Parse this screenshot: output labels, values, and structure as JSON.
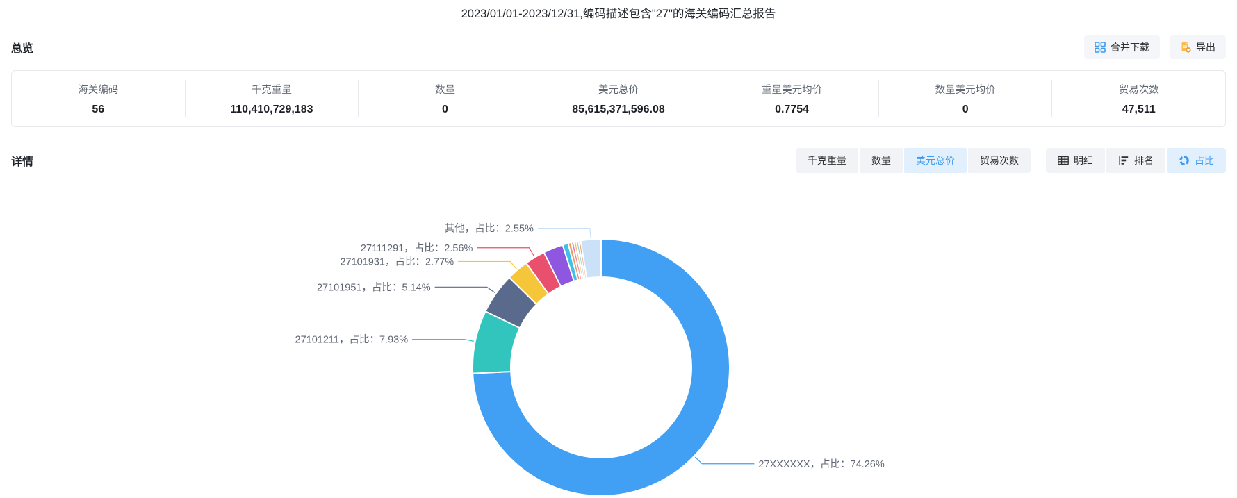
{
  "page": {
    "title": "2023/01/01-2023/12/31,编码描述包含\"27\"的海关编码汇总报告"
  },
  "overview": {
    "heading": "总览",
    "actions": {
      "merge_download": "合并下载",
      "export": "导出"
    },
    "stats": [
      {
        "label": "海关编码",
        "value": "56"
      },
      {
        "label": "千克重量",
        "value": "110,410,729,183"
      },
      {
        "label": "数量",
        "value": "0"
      },
      {
        "label": "美元总价",
        "value": "85,615,371,596.08"
      },
      {
        "label": "重量美元均价",
        "value": "0.7754"
      },
      {
        "label": "数量美元均价",
        "value": "0"
      },
      {
        "label": "贸易次数",
        "value": "47,511"
      }
    ]
  },
  "detail": {
    "heading": "详情",
    "metric_tabs": [
      {
        "label": "千克重量",
        "active": false
      },
      {
        "label": "数量",
        "active": false
      },
      {
        "label": "美元总价",
        "active": true
      },
      {
        "label": "贸易次数",
        "active": false
      }
    ],
    "view_tabs": [
      {
        "label": "明细",
        "icon": "table-icon",
        "active": false
      },
      {
        "label": "排名",
        "icon": "ranking-icon",
        "active": false
      },
      {
        "label": "占比",
        "icon": "pie-icon",
        "active": true
      }
    ]
  },
  "colors": {
    "accent_blue": "#3e9bf0",
    "accent_blue_bg": "#e2effc",
    "export_amber": "#f8bb4c"
  },
  "chart_data": {
    "type": "pie",
    "title": "",
    "legend_position": "none",
    "label_format": "{name}，占比：{pct}%",
    "center": [
      865,
      280
    ],
    "radius": [
      130,
      185
    ],
    "label_line_length": 75,
    "slices": [
      {
        "name": "27XXXXXX",
        "pct": 74.26,
        "color": "#41A0F4",
        "label": "27XXXXXX，占比：74.26%"
      },
      {
        "name": "27101211",
        "pct": 7.93,
        "color": "#32C5BE",
        "label": "27101211，占比：7.93%"
      },
      {
        "name": "27101951",
        "pct": 5.14,
        "color": "#5A6A8C",
        "label": "27101951，占比：5.14%"
      },
      {
        "name": "27101931",
        "pct": 2.77,
        "color": "#F5C63A",
        "label": "27101931，占比：2.77%"
      },
      {
        "name": "27111291",
        "pct": 2.56,
        "color": "#E9506E",
        "label": "27111291，占比：2.56%"
      },
      {
        "name": "",
        "pct": 2.5,
        "color": "#8F56E0",
        "label": "",
        "estimated": true
      },
      {
        "name": "",
        "pct": 0.7,
        "color": "#3EC0E8",
        "label": "",
        "estimated": true
      },
      {
        "name": "",
        "pct": 0.4,
        "color": "#F2995F",
        "label": "",
        "estimated": true
      },
      {
        "name": "",
        "pct": 0.33,
        "color": "#EE7FA0",
        "label": "",
        "estimated": true
      },
      {
        "name": "",
        "pct": 0.3,
        "color": "#F2C063",
        "label": "",
        "estimated": true
      },
      {
        "name": "",
        "pct": 0.28,
        "color": "#7FD0E8",
        "label": "",
        "estimated": true
      },
      {
        "name": "",
        "pct": 0.28,
        "color": "#F2995F",
        "label": "",
        "estimated": true
      },
      {
        "name": "其他",
        "pct": 2.55,
        "color": "#CBE1F8",
        "label": "其他，占比：2.55%"
      }
    ]
  }
}
